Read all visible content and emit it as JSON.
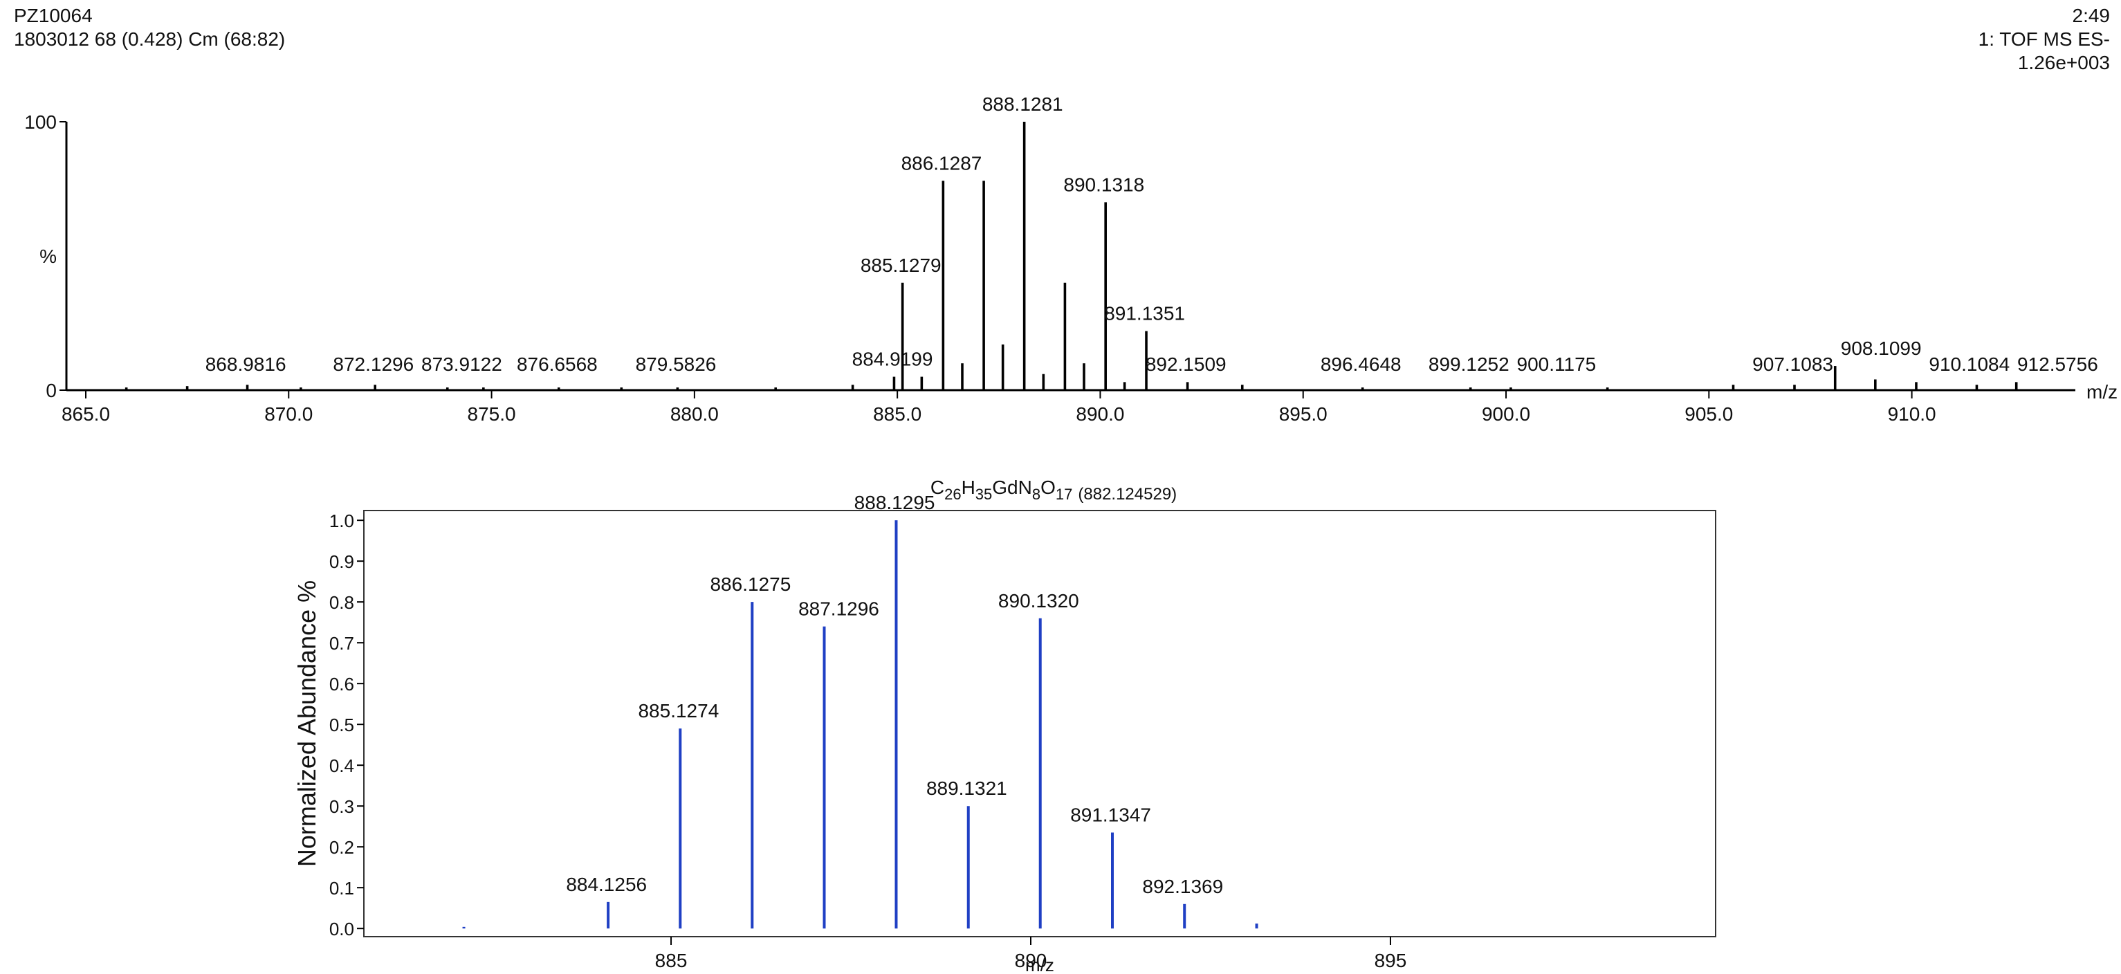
{
  "header": {
    "sample": "PZ10064",
    "scan": "1803012 68 (0.428) Cm (68:82)",
    "time": "2:49",
    "mode": "1: TOF MS ES-",
    "intensity": "1.26e+003"
  },
  "chart_data": [
    {
      "type": "bar",
      "color": "#000000",
      "x": [
        868.9816,
        872.1296,
        873.9122,
        876.6568,
        879.5826,
        884.9199,
        885.1279,
        886.1287,
        888.1281,
        890.1318,
        891.1351,
        892.1509,
        896.4648,
        899.1252,
        900.1175,
        907.1083,
        908.1099,
        910.1084,
        912.5756
      ],
      "values": [
        2,
        2,
        1,
        1,
        1,
        5,
        40,
        78,
        100,
        70,
        22,
        3,
        1,
        1,
        1,
        2,
        9,
        3,
        3
      ],
      "minor_x": [
        866.0,
        867.5,
        870.3,
        874.8,
        878.2,
        882.0,
        883.9,
        885.6,
        886.6,
        887.13,
        887.6,
        888.6,
        889.13,
        889.6,
        890.6,
        893.5,
        902.5,
        905.6,
        909.1,
        911.6
      ],
      "minor_values": [
        1,
        1.5,
        1,
        1,
        1,
        1,
        2,
        5,
        10,
        78,
        17,
        6,
        40,
        10,
        3,
        2,
        1,
        2,
        4,
        2
      ],
      "xlim": [
        864.25,
        914.03
      ],
      "ylim": [
        0,
        100
      ],
      "xticks": [
        {
          "value": 865,
          "label": "865.0"
        },
        {
          "value": 870,
          "label": "870.0"
        },
        {
          "value": 875,
          "label": "875.0"
        },
        {
          "value": 880,
          "label": "880.0"
        },
        {
          "value": 885,
          "label": "885.0"
        },
        {
          "value": 890,
          "label": "890.0"
        },
        {
          "value": 895,
          "label": "895.0"
        },
        {
          "value": 900,
          "label": "900.0"
        },
        {
          "value": 905,
          "label": "905.0"
        },
        {
          "value": 910,
          "label": "910.0"
        }
      ],
      "yticks": [
        0,
        100
      ],
      "y_label": "%",
      "x_label": "m/z"
    },
    {
      "type": "bar",
      "color": "#1f3fc4",
      "frame": true,
      "formula": [
        "C",
        "26",
        "H",
        "35",
        "GdN",
        "8",
        "O",
        "17"
      ],
      "formula_mass": "(882.124529)",
      "x": [
        884.1256,
        885.1274,
        886.1275,
        887.1296,
        888.1295,
        889.1321,
        890.132,
        891.1347,
        892.1369
      ],
      "x_labels": [
        "884.1256",
        "885.1274",
        "886.1275",
        "887.1296",
        "888.1295",
        "889.1321",
        "890.1320",
        "891.1347",
        "892.1369"
      ],
      "values": [
        0.065,
        0.49,
        0.8,
        0.74,
        1.0,
        0.3,
        0.76,
        0.235,
        0.06
      ],
      "minor_x": [
        882.12,
        893.14
      ],
      "minor_values": [
        0.004,
        0.012
      ],
      "xlim": [
        880.73,
        899.52
      ],
      "ylim": [
        -0.02,
        1.024
      ],
      "xticks": [
        885,
        890,
        895
      ],
      "yticks": [
        {
          "value": 0,
          "label": "0.0"
        },
        {
          "value": 0.1,
          "label": "0.1"
        },
        {
          "value": 0.2,
          "label": "0.2"
        },
        {
          "value": 0.3,
          "label": "0.3"
        },
        {
          "value": 0.4,
          "label": "0.4"
        },
        {
          "value": 0.5,
          "label": "0.5"
        },
        {
          "value": 0.6,
          "label": "0.6"
        },
        {
          "value": 0.7,
          "label": "0.7"
        },
        {
          "value": 0.8,
          "label": "0.8"
        },
        {
          "value": 0.9,
          "label": "0.9"
        },
        {
          "value": 1.0,
          "label": "1.0"
        }
      ],
      "y_label": "Normalized Abundance %",
      "x_label": "m/z"
    }
  ]
}
